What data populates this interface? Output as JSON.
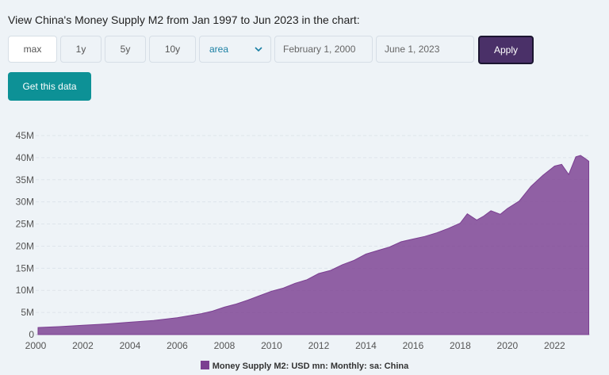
{
  "heading": "View China's Money Supply M2 from Jan 1997 to Jun 2023 in the chart:",
  "controls": {
    "ranges": [
      "max",
      "1y",
      "5y",
      "10y"
    ],
    "active_range": "max",
    "chart_type": "area",
    "start_date": "February 1, 2000",
    "end_date": "June 1, 2023",
    "apply_label": "Apply",
    "get_data_label": "Get this data"
  },
  "colors": {
    "area_fill": "#7b3f91",
    "accent": "#0d9196",
    "apply_bg": "#4a3068"
  },
  "chart_data": {
    "type": "area",
    "title": "",
    "xlabel": "",
    "ylabel": "",
    "xlim": [
      2000.0,
      2023.5
    ],
    "ylim": [
      0,
      45
    ],
    "y_ticks": [
      "0",
      "5M",
      "10M",
      "15M",
      "20M",
      "25M",
      "30M",
      "35M",
      "40M",
      "45M"
    ],
    "x_ticks": [
      "2000",
      "2002",
      "2004",
      "2006",
      "2008",
      "2010",
      "2012",
      "2014",
      "2016",
      "2018",
      "2020",
      "2022"
    ],
    "grid": true,
    "legend_position": "bottom",
    "series": [
      {
        "name": "Money Supply M2: USD mn: Monthly: sa: China",
        "unit": "M",
        "x": [
          2000.1,
          2001.0,
          2002.0,
          2003.0,
          2004.0,
          2005.0,
          2006.0,
          2007.0,
          2007.5,
          2008.0,
          2008.5,
          2009.0,
          2009.5,
          2010.0,
          2010.5,
          2011.0,
          2011.5,
          2012.0,
          2012.5,
          2013.0,
          2013.5,
          2014.0,
          2014.5,
          2015.0,
          2015.5,
          2016.0,
          2016.5,
          2017.0,
          2017.5,
          2018.0,
          2018.3,
          2018.7,
          2019.0,
          2019.3,
          2019.7,
          2020.0,
          2020.5,
          2021.0,
          2021.5,
          2022.0,
          2022.3,
          2022.6,
          2022.9,
          2023.1,
          2023.3,
          2023.45
        ],
        "values": [
          1.6,
          1.8,
          2.1,
          2.4,
          2.8,
          3.2,
          3.8,
          4.7,
          5.3,
          6.2,
          6.9,
          7.8,
          8.8,
          9.8,
          10.5,
          11.6,
          12.4,
          13.8,
          14.5,
          15.8,
          16.8,
          18.2,
          19.0,
          19.8,
          21.0,
          21.6,
          22.2,
          23.0,
          24.0,
          25.2,
          27.3,
          25.9,
          26.8,
          28.0,
          27.2,
          28.5,
          30.2,
          33.5,
          36.0,
          38.1,
          38.5,
          36.2,
          40.2,
          40.5,
          39.8,
          39.2
        ]
      }
    ]
  }
}
